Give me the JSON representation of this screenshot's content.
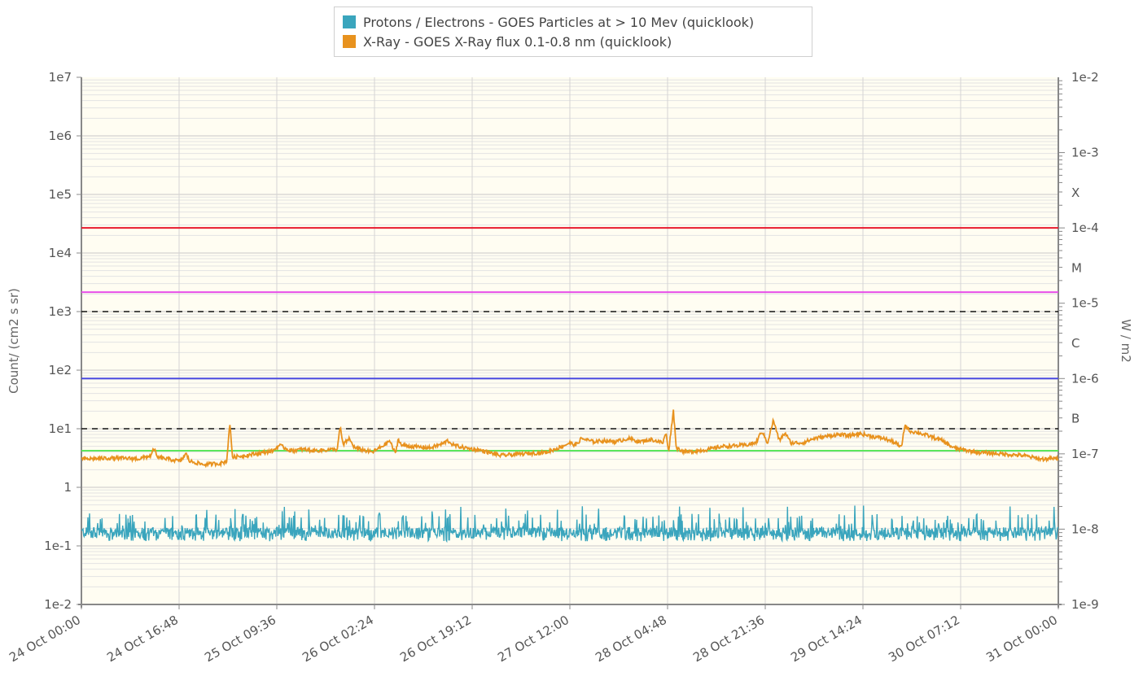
{
  "colors": {
    "proton": "#3aa5bd",
    "xray": "#e8921e",
    "x_threshold": "#e8192c",
    "m_threshold": "#e84fe8",
    "c_threshold": "#4a4ae0",
    "b_threshold": "#5ce65c",
    "alert": "#111111",
    "plot_bg": "#fffdf2",
    "grid": "#d9d9d9"
  },
  "legend": [
    {
      "name": "Protons / Electrons - GOES Particles at > 10 Mev (quicklook)",
      "color": "#3aa5bd"
    },
    {
      "name": "X-Ray - GOES X-Ray flux 0.1-0.8 nm (quicklook)",
      "color": "#e8921e"
    }
  ],
  "chart_data": {
    "type": "line",
    "title": "",
    "ylabel_left": "Count/ (cm2 s sr)",
    "ylabel_right": "W / m2",
    "x_ticks": [
      "24 Oct 00:00",
      "24 Oct 16:48",
      "25 Oct 09:36",
      "26 Oct 02:24",
      "26 Oct 19:12",
      "27 Oct 12:00",
      "28 Oct 04:48",
      "28 Oct 21:36",
      "29 Oct 14:24",
      "30 Oct 07:12",
      "31 Oct 00:00"
    ],
    "x_range_hours": [
      0,
      168
    ],
    "left_axis": {
      "scale": "log",
      "range": [
        0.01,
        10000000
      ],
      "ticks": [
        "1e7",
        "1e6",
        "1e5",
        "1e4",
        "1e3",
        "1e2",
        "1e1",
        "1",
        "1e-1",
        "1e-2"
      ]
    },
    "right_axis": {
      "scale": "log",
      "range": [
        1e-09,
        0.01
      ],
      "ticks": [
        "1e-2",
        "1e-3",
        "1e-4",
        "1e-5",
        "1e-6",
        "1e-7",
        "1e-8",
        "1e-9"
      ],
      "flare_classes": [
        {
          "label": "X",
          "value": 0.0003
        },
        {
          "label": "M",
          "value": 3e-05
        },
        {
          "label": "C",
          "value": 3e-06
        },
        {
          "label": "B",
          "value": 3e-07
        }
      ]
    },
    "thresholds": [
      {
        "name": "X",
        "axis": "right",
        "value": 0.0001,
        "color": "#e8192c",
        "style": "solid"
      },
      {
        "name": "M",
        "axis": "right",
        "value": 1.4e-05,
        "color": "#e84fe8",
        "style": "solid"
      },
      {
        "name": "C",
        "axis": "right",
        "value": 1e-06,
        "color": "#4a4ae0",
        "style": "solid"
      },
      {
        "name": "B",
        "axis": "right",
        "value": 1.1e-07,
        "color": "#5ce65c",
        "style": "solid"
      },
      {
        "name": "alert-1e3",
        "axis": "left",
        "value": 1000,
        "color": "#111111",
        "style": "dashed"
      },
      {
        "name": "alert-1e1",
        "axis": "left",
        "value": 10,
        "color": "#111111",
        "style": "dashed"
      }
    ],
    "series": [
      {
        "name": "Protons / Electrons - GOES Particles at > 10 Mev (quicklook)",
        "axis": "left",
        "color": "#3aa5bd",
        "baseline": 0.16,
        "range": [
          0.12,
          0.5
        ]
      },
      {
        "name": "X-Ray - GOES X-Ray flux 0.1-0.8 nm (quicklook)",
        "axis": "right",
        "color": "#e8921e",
        "points": [
          [
            0,
            8.5e-08
          ],
          [
            5,
            8.8e-08
          ],
          [
            10,
            8.6e-08
          ],
          [
            12,
            9.5e-08
          ],
          [
            12.5,
            1.2e-07
          ],
          [
            13,
            9e-08
          ],
          [
            17,
            8e-08
          ],
          [
            18,
            1e-07
          ],
          [
            18.6,
            8e-08
          ],
          [
            21,
            7.2e-08
          ],
          [
            24,
            7.5e-08
          ],
          [
            25,
            8e-08
          ],
          [
            25.5,
            2.6e-07
          ],
          [
            26,
            9e-08
          ],
          [
            30,
            1e-07
          ],
          [
            33,
            1.1e-07
          ],
          [
            34,
            1.3e-07
          ],
          [
            36,
            1.1e-07
          ],
          [
            38,
            1.15e-07
          ],
          [
            40,
            1.1e-07
          ],
          [
            44,
            1.15e-07
          ],
          [
            44.5,
            2.3e-07
          ],
          [
            45,
            1.3e-07
          ],
          [
            46,
            1.6e-07
          ],
          [
            47,
            1.2e-07
          ],
          [
            50,
            1.05e-07
          ],
          [
            52,
            1.3e-07
          ],
          [
            53,
            1.5e-07
          ],
          [
            54,
            1e-07
          ],
          [
            54.5,
            1.6e-07
          ],
          [
            55,
            1.3e-07
          ],
          [
            57,
            1.25e-07
          ],
          [
            60,
            1.2e-07
          ],
          [
            62,
            1.35e-07
          ],
          [
            63,
            1.5e-07
          ],
          [
            64,
            1.3e-07
          ],
          [
            66,
            1.2e-07
          ],
          [
            69,
            1.1e-07
          ],
          [
            72,
            9.5e-08
          ],
          [
            76,
            1e-07
          ],
          [
            80,
            1.05e-07
          ],
          [
            82,
            1.2e-07
          ],
          [
            84,
            1.4e-07
          ],
          [
            85,
            1.3e-07
          ],
          [
            86,
            1.6e-07
          ],
          [
            88,
            1.45e-07
          ],
          [
            90,
            1.5e-07
          ],
          [
            92,
            1.45e-07
          ],
          [
            94,
            1.6e-07
          ],
          [
            96,
            1.45e-07
          ],
          [
            98,
            1.55e-07
          ],
          [
            100,
            1.4e-07
          ],
          [
            100.5,
            1.9e-07
          ],
          [
            101,
            1.1e-07
          ],
          [
            101.8,
            3.8e-07
          ],
          [
            102.3,
            1.2e-07
          ],
          [
            104,
            1.05e-07
          ],
          [
            108,
            1.15e-07
          ],
          [
            110,
            1.25e-07
          ],
          [
            114,
            1.3e-07
          ],
          [
            116,
            1.4e-07
          ],
          [
            117,
            2e-07
          ],
          [
            118,
            1.4e-07
          ],
          [
            119,
            2.8e-07
          ],
          [
            120,
            1.5e-07
          ],
          [
            121,
            1.9e-07
          ],
          [
            122,
            1.4e-07
          ],
          [
            124,
            1.4e-07
          ],
          [
            126,
            1.6e-07
          ],
          [
            128,
            1.7e-07
          ],
          [
            130,
            1.8e-07
          ],
          [
            132,
            1.75e-07
          ],
          [
            134,
            1.85e-07
          ],
          [
            136,
            1.7e-07
          ],
          [
            138,
            1.6e-07
          ],
          [
            140,
            1.4e-07
          ],
          [
            141,
            1.2e-07
          ],
          [
            141.6,
            2.4e-07
          ],
          [
            142.5,
            2e-07
          ],
          [
            144,
            1.9e-07
          ],
          [
            146,
            1.7e-07
          ],
          [
            148,
            1.5e-07
          ],
          [
            150,
            1.2e-07
          ],
          [
            154,
            1.05e-07
          ],
          [
            158,
            1e-07
          ],
          [
            162,
            9.5e-08
          ],
          [
            165,
            8.5e-08
          ],
          [
            168,
            8.7e-08
          ]
        ]
      }
    ],
    "grid": true,
    "legend_position": "top-center"
  }
}
